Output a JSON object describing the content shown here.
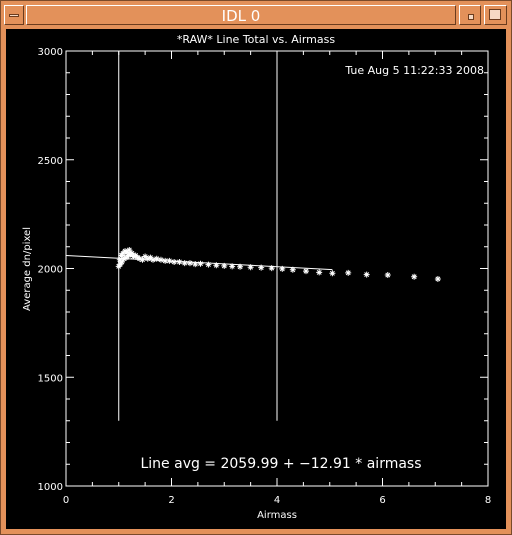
{
  "window": {
    "title": "IDL 0"
  },
  "plot": {
    "title": "*RAW* Line Total vs. Airmass",
    "timestamp": "Tue Aug  5 11:22:33 2008",
    "annotation": "Line avg = 2059.99 + −12.91 * airmass",
    "colors": {
      "background": "#000000",
      "foreground": "#ffffff",
      "frame": "#e3915a"
    }
  },
  "chart_data": {
    "type": "scatter",
    "title": "*RAW* Line Total vs. Airmass",
    "xlabel": "Airmass",
    "ylabel": "Average dn/pixel",
    "xlim": [
      0,
      8
    ],
    "ylim": [
      1000,
      3000
    ],
    "xticks": [
      0,
      2,
      4,
      6,
      8
    ],
    "yticks": [
      1000,
      1500,
      2000,
      2500,
      3000
    ],
    "xtick_labels": [
      "0",
      "2",
      "4",
      "6",
      "8"
    ],
    "ytick_labels": [
      "1000",
      "1500",
      "2000",
      "2500",
      "3000"
    ],
    "grid": false,
    "vlines": [
      {
        "x": 1.0,
        "y_from": 1300,
        "y_to": 3000
      },
      {
        "x": 4.0,
        "y_from": 1300,
        "y_to": 3000
      }
    ],
    "fit_line": {
      "x0": 0.0,
      "x1": 5.05,
      "intercept": 2059.99,
      "slope": -12.91
    },
    "points": [
      [
        1.0,
        2010
      ],
      [
        1.02,
        2040
      ],
      [
        1.03,
        2020
      ],
      [
        1.05,
        2060
      ],
      [
        1.06,
        2030
      ],
      [
        1.08,
        2070
      ],
      [
        1.1,
        2045
      ],
      [
        1.12,
        2080
      ],
      [
        1.14,
        2050
      ],
      [
        1.16,
        2075
      ],
      [
        1.18,
        2060
      ],
      [
        1.2,
        2085
      ],
      [
        1.22,
        2065
      ],
      [
        1.25,
        2070
      ],
      [
        1.28,
        2055
      ],
      [
        1.32,
        2060
      ],
      [
        1.36,
        2050
      ],
      [
        1.4,
        2045
      ],
      [
        1.45,
        2040
      ],
      [
        1.5,
        2055
      ],
      [
        1.55,
        2045
      ],
      [
        1.6,
        2050
      ],
      [
        1.65,
        2040
      ],
      [
        1.72,
        2045
      ],
      [
        1.8,
        2040
      ],
      [
        1.88,
        2035
      ],
      [
        1.96,
        2035
      ],
      [
        2.05,
        2030
      ],
      [
        2.15,
        2030
      ],
      [
        2.25,
        2025
      ],
      [
        2.35,
        2025
      ],
      [
        2.45,
        2020
      ],
      [
        2.55,
        2022
      ],
      [
        2.7,
        2018
      ],
      [
        2.85,
        2015
      ],
      [
        3.0,
        2012
      ],
      [
        3.15,
        2010
      ],
      [
        3.3,
        2008
      ],
      [
        3.5,
        2006
      ],
      [
        3.7,
        2004
      ],
      [
        3.9,
        2002
      ],
      [
        4.1,
        1998
      ],
      [
        4.3,
        1994
      ],
      [
        4.55,
        1988
      ],
      [
        4.8,
        1982
      ],
      [
        5.05,
        1978
      ],
      [
        5.35,
        1980
      ],
      [
        5.7,
        1972
      ],
      [
        6.1,
        1970
      ],
      [
        6.6,
        1962
      ],
      [
        7.05,
        1952
      ]
    ]
  }
}
